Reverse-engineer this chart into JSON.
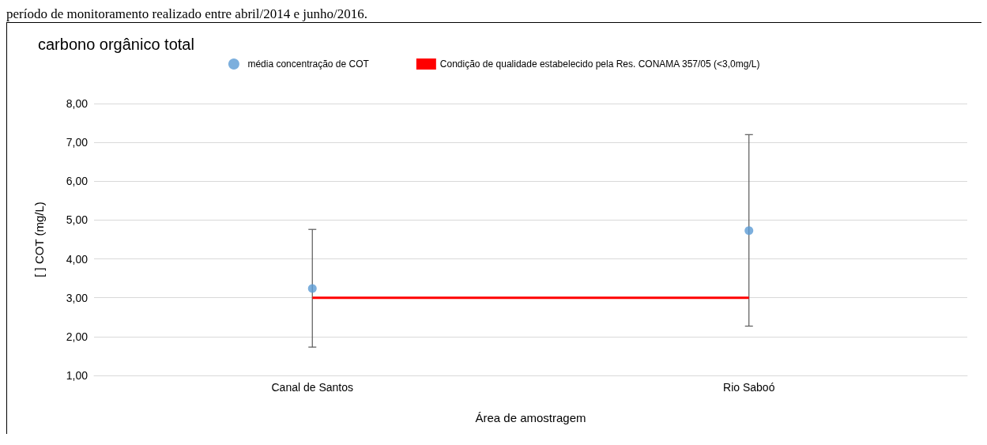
{
  "chart_data": {
    "type": "scatter",
    "title": "carbono orgânico total",
    "xlabel": "Área de amostragem",
    "ylabel": "[ ] COT (mg/L)",
    "annotations": [
      "período de monitoramento realizado entre abril/2014 e junho/2016."
    ],
    "categories": [
      "Canal de Santos",
      "Rio Saboó"
    ],
    "series": [
      {
        "name": "média concentração de COT",
        "color": "#5b9bd5",
        "values": [
          3.24,
          4.73
        ],
        "errors": [
          [
            1.73,
            4.76
          ],
          [
            2.27,
            7.2
          ]
        ]
      },
      {
        "name": "Condição de qualidade estabelecido pela Res. CONAMA 357/05 (<3,0mg/L)",
        "type": "line",
        "color": "#ff0000",
        "values": [
          3,
          3
        ],
        "marker": "none"
      }
    ],
    "ylim": [
      1,
      8
    ],
    "yticks": [
      {
        "value": 1,
        "label": "1,00"
      },
      {
        "value": 2,
        "label": "2,00"
      },
      {
        "value": 3,
        "label": "3,00"
      },
      {
        "value": 4,
        "label": "4,00"
      },
      {
        "value": 5,
        "label": "5,00"
      },
      {
        "value": 6,
        "label": "6,00"
      },
      {
        "value": 7,
        "label": "7,00"
      },
      {
        "value": 8,
        "label": "8,00"
      }
    ],
    "grid": "y",
    "legend": "top",
    "marker": "circle"
  }
}
